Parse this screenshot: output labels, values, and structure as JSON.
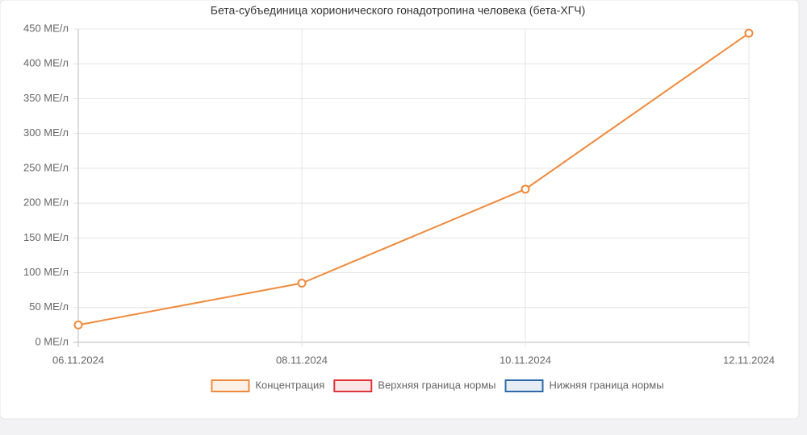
{
  "chart_data": {
    "type": "line",
    "title": "Бета-субъединица хорионического гонадотропина человека (бета-ХГЧ)",
    "categories": [
      "06.11.2024",
      "08.11.2024",
      "10.11.2024",
      "12.11.2024"
    ],
    "series": [
      {
        "name": "Концентрация",
        "color": "#ef8a3c",
        "values": [
          25,
          85,
          220,
          444
        ]
      },
      {
        "name": "Верхняя граница нормы",
        "color": "#e0343c",
        "values": [
          null,
          null,
          null,
          null
        ]
      },
      {
        "name": "Нижняя граница нормы",
        "color": "#2f6aa8",
        "values": [
          null,
          null,
          null,
          null
        ]
      }
    ],
    "ylim": [
      0,
      450
    ],
    "yticks": [
      {
        "value": 0,
        "label": "0 МЕ/л"
      },
      {
        "value": 50,
        "label": "50 МЕ/л"
      },
      {
        "value": 100,
        "label": "100 МЕ/л"
      },
      {
        "value": 150,
        "label": "150 МЕ/л"
      },
      {
        "value": 200,
        "label": "200 МЕ/л"
      },
      {
        "value": 250,
        "label": "250 МЕ/л"
      },
      {
        "value": 300,
        "label": "300 МЕ/л"
      },
      {
        "value": 350,
        "label": "350 МЕ/л"
      },
      {
        "value": 400,
        "label": "400 МЕ/л"
      },
      {
        "value": 450,
        "label": "450 МЕ/л"
      }
    ],
    "grid": true,
    "legend": "bottom"
  }
}
